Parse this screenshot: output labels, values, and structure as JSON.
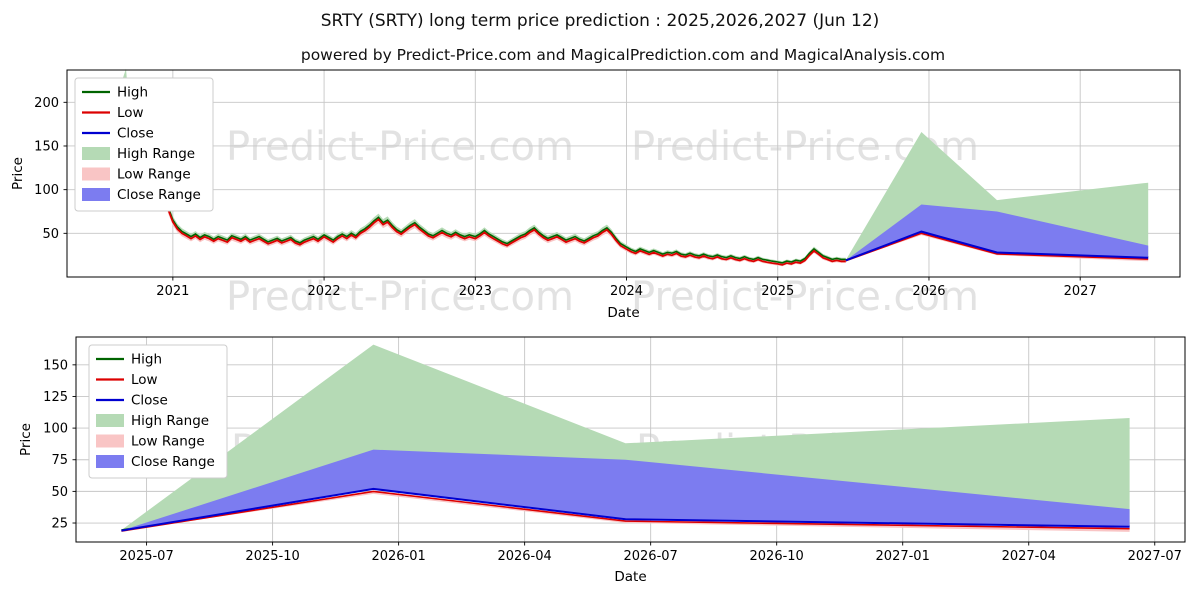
{
  "page": {
    "title": "SRTY (SRTY) long term price prediction : 2025,2026,2027 (Jun 12)",
    "subtitle": "powered by Predict-Price.com and MagicalPrediction.com and MagicalAnalysis.com",
    "watermark_text": "Predict-Price.com",
    "background": "#ffffff"
  },
  "colors": {
    "high_line": "#006400",
    "low_line": "#dc0000",
    "close_line": "#0000d0",
    "high_range_fill": "#b5dab5",
    "low_range_fill": "#f9c5c5",
    "close_range_fill": "#7c7cf0",
    "grid": "#c6c6c6",
    "spine": "#000000",
    "watermark": "#e2e2e2",
    "tick_text": "#000000"
  },
  "legend": {
    "items": [
      {
        "label": "High",
        "type": "line",
        "color": "#006400"
      },
      {
        "label": "Low",
        "type": "line",
        "color": "#dc0000"
      },
      {
        "label": "Close",
        "type": "line",
        "color": "#0000d0"
      },
      {
        "label": "High Range",
        "type": "patch",
        "color": "#b5dab5"
      },
      {
        "label": "Low Range",
        "type": "patch",
        "color": "#f9c5c5"
      },
      {
        "label": "Close Range",
        "type": "patch",
        "color": "#7c7cf0"
      }
    ]
  },
  "chart_data": [
    {
      "name": "history-and-long-term-prediction",
      "type": "line",
      "xlabel": "Date",
      "ylabel": "Price",
      "grid": true,
      "legend_position": "upper-left",
      "xlim": [
        2020.3,
        2027.66
      ],
      "ylim": [
        0,
        237
      ],
      "xticks": [
        {
          "v": 2021,
          "label": "2021"
        },
        {
          "v": 2022,
          "label": "2022"
        },
        {
          "v": 2023,
          "label": "2023"
        },
        {
          "v": 2024,
          "label": "2024"
        },
        {
          "v": 2025,
          "label": "2025"
        },
        {
          "v": 2026,
          "label": "2026"
        },
        {
          "v": 2027,
          "label": "2027"
        }
      ],
      "yticks": [
        {
          "v": 50,
          "label": "50"
        },
        {
          "v": 100,
          "label": "100"
        },
        {
          "v": 150,
          "label": "150"
        },
        {
          "v": 200,
          "label": "200"
        }
      ],
      "historical": {
        "high_offset": 1.2,
        "low_offset": -1.0,
        "range_band_base": 1.0,
        "range_band_factor": 0.05,
        "points_x_mid": [
          [
            2020.62,
            185
          ],
          [
            2020.66,
            210
          ],
          [
            2020.69,
            225
          ],
          [
            2020.71,
            185
          ],
          [
            2020.73,
            152
          ],
          [
            2020.76,
            170
          ],
          [
            2020.79,
            203
          ],
          [
            2020.82,
            178
          ],
          [
            2020.85,
            158
          ],
          [
            2020.88,
            135
          ],
          [
            2020.91,
            118
          ],
          [
            2020.94,
            96
          ],
          [
            2020.97,
            78
          ],
          [
            2021.0,
            64
          ],
          [
            2021.03,
            56
          ],
          [
            2021.06,
            51
          ],
          [
            2021.09,
            48
          ],
          [
            2021.12,
            45
          ],
          [
            2021.15,
            48
          ],
          [
            2021.18,
            44
          ],
          [
            2021.21,
            47
          ],
          [
            2021.24,
            45
          ],
          [
            2021.27,
            42
          ],
          [
            2021.3,
            45
          ],
          [
            2021.33,
            43
          ],
          [
            2021.36,
            41
          ],
          [
            2021.39,
            46
          ],
          [
            2021.42,
            44
          ],
          [
            2021.45,
            42
          ],
          [
            2021.48,
            45
          ],
          [
            2021.51,
            41
          ],
          [
            2021.54,
            43
          ],
          [
            2021.57,
            45
          ],
          [
            2021.6,
            42
          ],
          [
            2021.63,
            39
          ],
          [
            2021.66,
            41
          ],
          [
            2021.69,
            43
          ],
          [
            2021.72,
            40
          ],
          [
            2021.75,
            42
          ],
          [
            2021.78,
            44
          ],
          [
            2021.81,
            40
          ],
          [
            2021.84,
            38
          ],
          [
            2021.87,
            41
          ],
          [
            2021.9,
            43
          ],
          [
            2021.93,
            45
          ],
          [
            2021.96,
            42
          ],
          [
            2022.0,
            47
          ],
          [
            2022.03,
            44
          ],
          [
            2022.06,
            41
          ],
          [
            2022.09,
            45
          ],
          [
            2022.12,
            48
          ],
          [
            2022.15,
            45
          ],
          [
            2022.18,
            49
          ],
          [
            2022.21,
            46
          ],
          [
            2022.24,
            51
          ],
          [
            2022.27,
            54
          ],
          [
            2022.3,
            58
          ],
          [
            2022.33,
            63
          ],
          [
            2022.36,
            67
          ],
          [
            2022.39,
            61
          ],
          [
            2022.42,
            64
          ],
          [
            2022.45,
            58
          ],
          [
            2022.48,
            53
          ],
          [
            2022.51,
            50
          ],
          [
            2022.54,
            54
          ],
          [
            2022.57,
            58
          ],
          [
            2022.6,
            61
          ],
          [
            2022.63,
            56
          ],
          [
            2022.66,
            52
          ],
          [
            2022.69,
            48
          ],
          [
            2022.72,
            46
          ],
          [
            2022.75,
            49
          ],
          [
            2022.78,
            52
          ],
          [
            2022.81,
            49
          ],
          [
            2022.84,
            47
          ],
          [
            2022.87,
            50
          ],
          [
            2022.9,
            47
          ],
          [
            2022.93,
            45
          ],
          [
            2022.96,
            47
          ],
          [
            2023.0,
            45
          ],
          [
            2023.03,
            48
          ],
          [
            2023.06,
            52
          ],
          [
            2023.09,
            48
          ],
          [
            2023.12,
            45
          ],
          [
            2023.15,
            42
          ],
          [
            2023.18,
            39
          ],
          [
            2023.21,
            37
          ],
          [
            2023.24,
            40
          ],
          [
            2023.27,
            43
          ],
          [
            2023.3,
            46
          ],
          [
            2023.33,
            48
          ],
          [
            2023.36,
            52
          ],
          [
            2023.39,
            55
          ],
          [
            2023.42,
            50
          ],
          [
            2023.45,
            46
          ],
          [
            2023.48,
            43
          ],
          [
            2023.51,
            45
          ],
          [
            2023.54,
            47
          ],
          [
            2023.57,
            44
          ],
          [
            2023.6,
            41
          ],
          [
            2023.63,
            43
          ],
          [
            2023.66,
            45
          ],
          [
            2023.69,
            42
          ],
          [
            2023.72,
            40
          ],
          [
            2023.75,
            43
          ],
          [
            2023.78,
            46
          ],
          [
            2023.81,
            48
          ],
          [
            2023.84,
            52
          ],
          [
            2023.87,
            55
          ],
          [
            2023.9,
            50
          ],
          [
            2023.93,
            43
          ],
          [
            2023.96,
            37
          ],
          [
            2024.0,
            33
          ],
          [
            2024.03,
            30
          ],
          [
            2024.06,
            28
          ],
          [
            2024.09,
            31
          ],
          [
            2024.12,
            29
          ],
          [
            2024.15,
            27
          ],
          [
            2024.18,
            29
          ],
          [
            2024.21,
            27
          ],
          [
            2024.24,
            25
          ],
          [
            2024.27,
            27
          ],
          [
            2024.3,
            26
          ],
          [
            2024.33,
            28
          ],
          [
            2024.36,
            25
          ],
          [
            2024.39,
            24
          ],
          [
            2024.42,
            26
          ],
          [
            2024.45,
            24
          ],
          [
            2024.48,
            23
          ],
          [
            2024.51,
            25
          ],
          [
            2024.54,
            23
          ],
          [
            2024.57,
            22
          ],
          [
            2024.6,
            24
          ],
          [
            2024.63,
            22
          ],
          [
            2024.66,
            21
          ],
          [
            2024.69,
            23
          ],
          [
            2024.72,
            21
          ],
          [
            2024.75,
            20
          ],
          [
            2024.78,
            22
          ],
          [
            2024.81,
            20
          ],
          [
            2024.84,
            19
          ],
          [
            2024.87,
            21
          ],
          [
            2024.9,
            19
          ],
          [
            2024.93,
            18
          ],
          [
            2024.96,
            17
          ],
          [
            2025.0,
            16
          ],
          [
            2025.03,
            15
          ],
          [
            2025.06,
            17
          ],
          [
            2025.09,
            16
          ],
          [
            2025.12,
            18
          ],
          [
            2025.15,
            17
          ],
          [
            2025.18,
            20
          ],
          [
            2025.21,
            26
          ],
          [
            2025.24,
            31
          ],
          [
            2025.27,
            27
          ],
          [
            2025.3,
            23
          ],
          [
            2025.33,
            21
          ],
          [
            2025.36,
            19
          ],
          [
            2025.39,
            20
          ],
          [
            2025.42,
            19
          ],
          [
            2025.45,
            19
          ]
        ]
      },
      "prediction": {
        "dates": [
          "2025-06-12",
          "2025-12-12",
          "2026-06-12",
          "2027-06-12"
        ],
        "x": [
          2025.45,
          2025.95,
          2026.45,
          2027.45
        ],
        "close": [
          19,
          52,
          28,
          22
        ],
        "low": [
          18.6,
          50,
          26.5,
          20.5
        ],
        "high": [
          19.4,
          53,
          29,
          23
        ],
        "close_upper": [
          19,
          83,
          75,
          36
        ],
        "low_lower": [
          18.6,
          48,
          25,
          18
        ],
        "high_upper": [
          19.4,
          166,
          88,
          108
        ]
      }
    },
    {
      "name": "prediction-detail-2025-2027",
      "type": "line",
      "xlabel": "Date",
      "ylabel": "Price",
      "grid": true,
      "legend_position": "upper-left",
      "xlim": [
        2025.36,
        2027.56
      ],
      "ylim": [
        10,
        172
      ],
      "xticks": [
        {
          "v": 2025.5,
          "label": "2025-07"
        },
        {
          "v": 2025.75,
          "label": "2025-10"
        },
        {
          "v": 2026.0,
          "label": "2026-01"
        },
        {
          "v": 2026.25,
          "label": "2026-04"
        },
        {
          "v": 2026.5,
          "label": "2026-07"
        },
        {
          "v": 2026.75,
          "label": "2026-10"
        },
        {
          "v": 2027.0,
          "label": "2027-01"
        },
        {
          "v": 2027.25,
          "label": "2027-04"
        },
        {
          "v": 2027.5,
          "label": "2027-07"
        }
      ],
      "yticks": [
        {
          "v": 25,
          "label": "25"
        },
        {
          "v": 50,
          "label": "50"
        },
        {
          "v": 75,
          "label": "75"
        },
        {
          "v": 100,
          "label": "100"
        },
        {
          "v": 125,
          "label": "125"
        },
        {
          "v": 150,
          "label": "150"
        }
      ],
      "prediction": {
        "dates": [
          "2025-06-12",
          "2025-12-12",
          "2026-06-12",
          "2027-06-12"
        ],
        "x": [
          2025.45,
          2025.95,
          2026.45,
          2027.45
        ],
        "close": [
          19,
          52,
          28,
          22
        ],
        "low": [
          18.6,
          50,
          26.5,
          20.5
        ],
        "high": [
          19.4,
          53,
          29,
          23
        ],
        "close_upper": [
          19,
          83,
          75,
          36
        ],
        "low_lower": [
          18.6,
          48,
          25,
          18
        ],
        "high_upper": [
          19.4,
          166,
          88,
          108
        ]
      }
    }
  ]
}
